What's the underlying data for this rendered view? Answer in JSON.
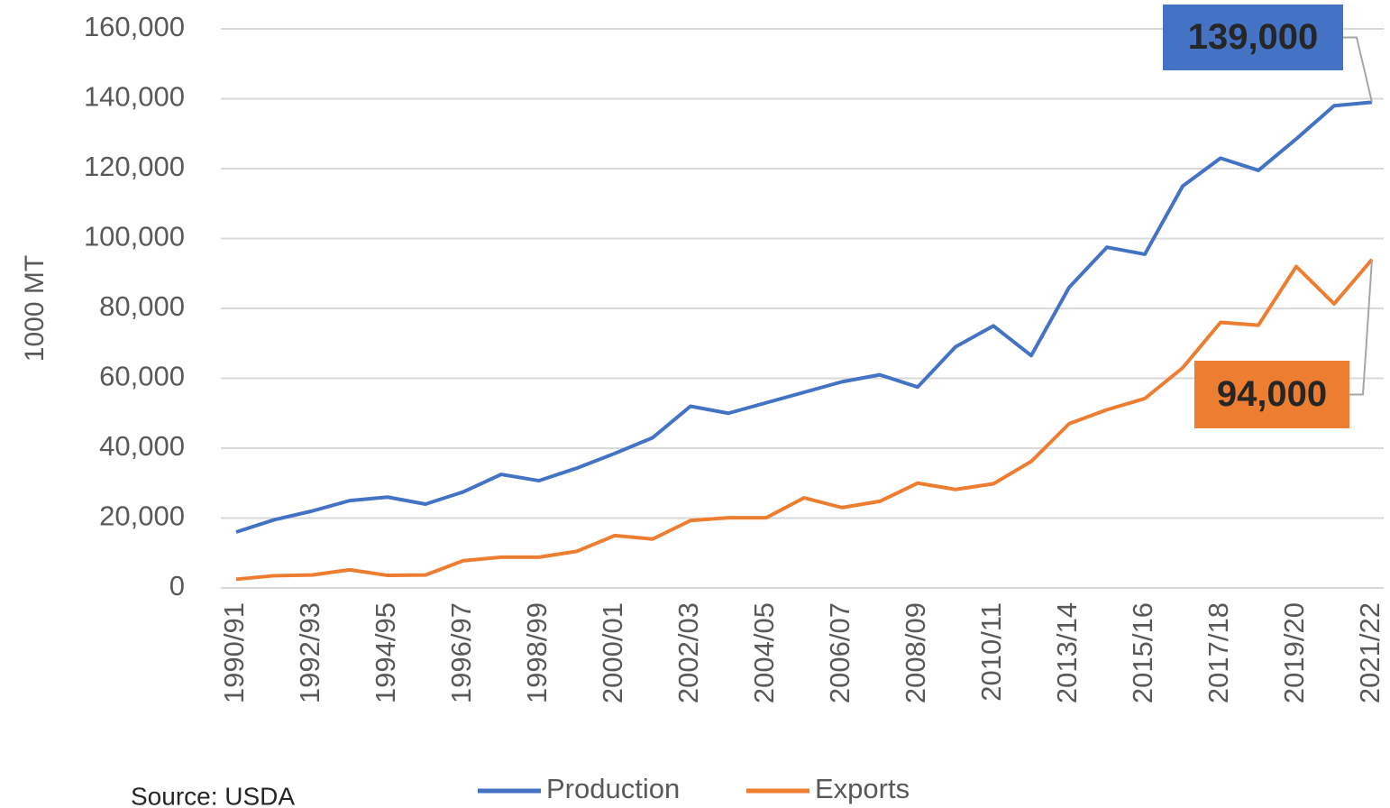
{
  "chart_data": {
    "type": "line",
    "y_label": "1000 MT",
    "source": "Source: USDA",
    "categories": [
      "1990/91",
      null,
      "1992/93",
      null,
      "1994/95",
      null,
      "1996/97",
      null,
      "1998/99",
      null,
      "2000/01",
      null,
      "2002/03",
      null,
      "2004/05",
      null,
      "2006/07",
      null,
      "2008/09",
      null,
      "2010/11",
      null,
      "2013/14",
      null,
      "2015/16",
      null,
      "2017/18",
      null,
      "2019/20",
      null,
      "2021/22"
    ],
    "series": [
      {
        "name": "Production",
        "color": "#4472c4",
        "values": [
          16000,
          19500,
          22000,
          25000,
          26000,
          24000,
          27500,
          32500,
          30700,
          34300,
          38500,
          43000,
          52000,
          50000,
          53000,
          56000,
          59000,
          61000,
          57500,
          69000,
          75000,
          66500,
          86000,
          97500,
          95500,
          115000,
          123000,
          119500,
          128500,
          138000,
          139000
        ]
      },
      {
        "name": "Exports",
        "color": "#ed7d31",
        "values": [
          2500,
          3500,
          3700,
          5200,
          3600,
          3700,
          7800,
          8800,
          8800,
          10500,
          15000,
          14000,
          19300,
          20100,
          20100,
          25800,
          23000,
          24800,
          30000,
          28200,
          29800,
          36200,
          47000,
          51000,
          54200,
          63000,
          76000,
          75200,
          92000,
          81300,
          94000
        ]
      }
    ],
    "annotations": [
      "139,000",
      "94,000"
    ],
    "ylim": [
      0,
      160000
    ],
    "yticks": [
      0,
      {
        "value": 20000,
        "label": "20,000"
      },
      {
        "value": 40000,
        "label": "40,000"
      },
      {
        "value": 60000,
        "label": "60,000"
      },
      {
        "value": 80000,
        "label": "80,000"
      },
      {
        "value": 100000,
        "label": "100,000"
      },
      {
        "value": 120000,
        "label": "120,000"
      },
      {
        "value": 140000,
        "label": "140,000"
      },
      {
        "value": 160000,
        "label": "160,000"
      }
    ],
    "grid": true,
    "legend": "bottom"
  }
}
